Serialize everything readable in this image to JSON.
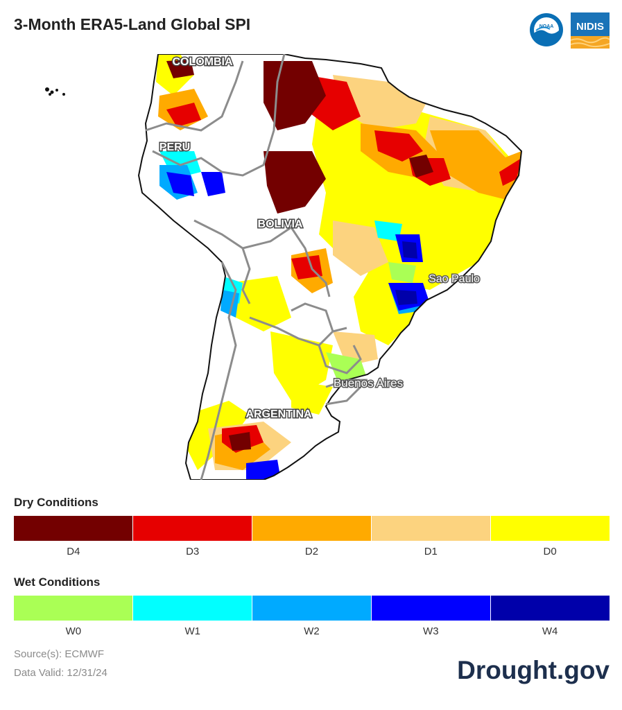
{
  "header": {
    "title": "3-Month ERA5-Land Global SPI"
  },
  "logos": {
    "noaa": "NOAA",
    "nidis": "NIDIS"
  },
  "map": {
    "labels": {
      "colombia": "COLOMBIA",
      "peru": "PERU",
      "bolivia": "BOLIVIA",
      "sao_paulo": "Sao Paulo",
      "buenos_aires": "Buenos Aires",
      "argentina": "ARGENTINA"
    }
  },
  "legend": {
    "dry": {
      "heading": "Dry Conditions",
      "categories": [
        {
          "label": "D4",
          "color": "#730000"
        },
        {
          "label": "D3",
          "color": "#e60000"
        },
        {
          "label": "D2",
          "color": "#ffaa00"
        },
        {
          "label": "D1",
          "color": "#fcd37f"
        },
        {
          "label": "D0",
          "color": "#ffff00"
        }
      ]
    },
    "wet": {
      "heading": "Wet Conditions",
      "categories": [
        {
          "label": "W0",
          "color": "#aaff55"
        },
        {
          "label": "W1",
          "color": "#01ffff"
        },
        {
          "label": "W2",
          "color": "#00aaff"
        },
        {
          "label": "W3",
          "color": "#0000ff"
        },
        {
          "label": "W4",
          "color": "#0000aa"
        }
      ]
    }
  },
  "footer": {
    "source": "Source(s): ECMWF",
    "valid": "Data Valid: 12/31/24",
    "brand": "Drought.gov"
  }
}
